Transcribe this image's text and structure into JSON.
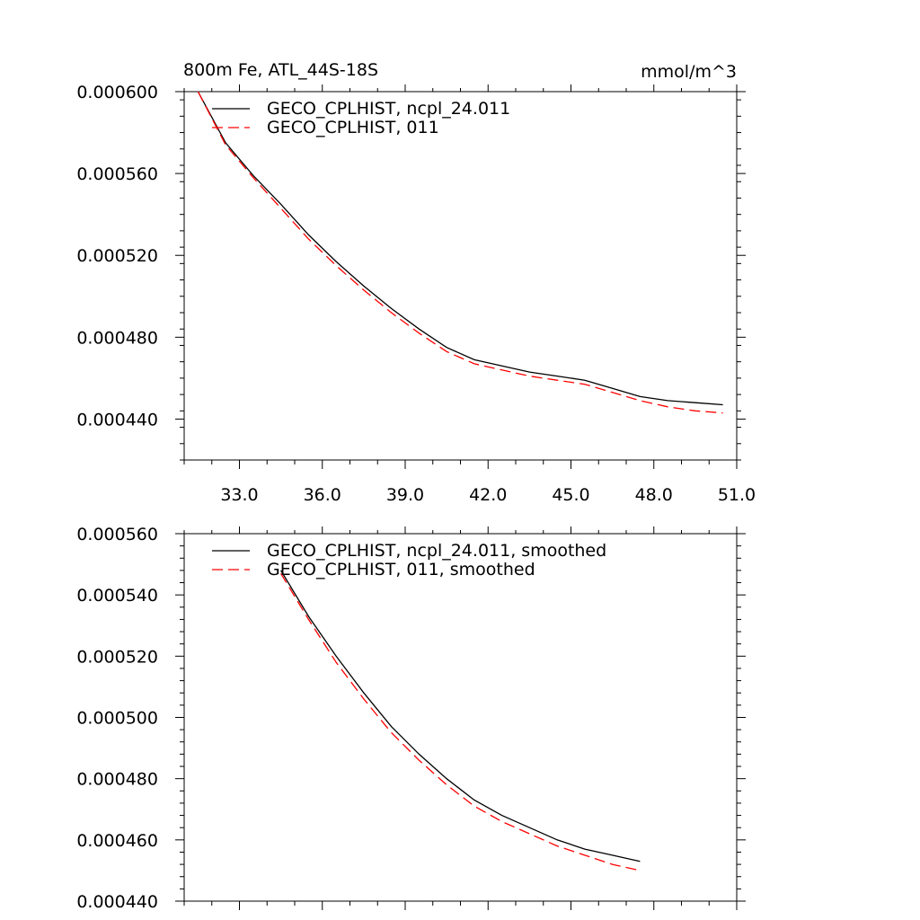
{
  "chart_data": [
    {
      "type": "line",
      "title": "800m Fe, ATL_44S-18S",
      "units": "mmol/m^3",
      "xlim": [
        31.0,
        51.0
      ],
      "ylim": [
        0.00042,
        0.0006
      ],
      "x_ticks": [
        33,
        36,
        39,
        42,
        45,
        48,
        51
      ],
      "x_tick_labels": [
        "33.0",
        "36.0",
        "39.0",
        "42.0",
        "45.0",
        "48.0",
        "51.0"
      ],
      "y_ticks": [
        0.00044,
        0.00048,
        0.00052,
        0.00056,
        0.0006
      ],
      "y_tick_labels": [
        "0.000440",
        "0.000480",
        "0.000520",
        "0.000560",
        "0.000600"
      ],
      "legend_position": "top-left",
      "series": [
        {
          "name": "GECO_CPLHIST, ncpl_24.011",
          "color": "#000000",
          "dash": "solid",
          "x": [
            31.5,
            32.5,
            33.5,
            34.5,
            35.5,
            36.5,
            37.5,
            38.5,
            39.5,
            40.5,
            41.5,
            42.5,
            43.5,
            44.5,
            45.5,
            46.5,
            47.5,
            48.5,
            49.5,
            50.5
          ],
          "y": [
            0.0006,
            0.000575,
            0.000559,
            0.000545,
            0.00053,
            0.000517,
            0.000505,
            0.000494,
            0.000484,
            0.000475,
            0.000469,
            0.000466,
            0.000463,
            0.000461,
            0.000459,
            0.000455,
            0.000451,
            0.000449,
            0.000448,
            0.000447
          ]
        },
        {
          "name": "GECO_CPLHIST, 011",
          "color": "#ff0000",
          "dash": "dashed",
          "x": [
            31.5,
            32.5,
            33.5,
            34.5,
            35.5,
            36.5,
            37.5,
            38.5,
            39.5,
            40.5,
            41.5,
            42.5,
            43.5,
            44.5,
            45.5,
            46.5,
            47.5,
            48.5,
            49.5,
            50.5
          ],
          "y": [
            0.0006,
            0.000574,
            0.000558,
            0.000543,
            0.000528,
            0.000515,
            0.000503,
            0.000492,
            0.000482,
            0.000473,
            0.000467,
            0.000464,
            0.000461,
            0.000459,
            0.000457,
            0.000453,
            0.000449,
            0.000446,
            0.000444,
            0.000443
          ]
        }
      ]
    },
    {
      "type": "line",
      "xlim": [
        31.0,
        51.0
      ],
      "ylim": [
        0.00044,
        0.00056
      ],
      "x_ticks": [
        33,
        36,
        39,
        42,
        45,
        48,
        51
      ],
      "y_ticks": [
        0.00044,
        0.00046,
        0.00048,
        0.0005,
        0.00052,
        0.00054,
        0.00056
      ],
      "y_tick_labels": [
        "0.000440",
        "0.000460",
        "0.000480",
        "0.000500",
        "0.000520",
        "0.000540",
        "0.000560"
      ],
      "legend_position": "top-left",
      "series": [
        {
          "name": "GECO_CPLHIST, ncpl_24.011, smoothed",
          "color": "#000000",
          "dash": "solid",
          "x": [
            34.5,
            35.5,
            36.5,
            37.5,
            38.5,
            39.5,
            40.5,
            41.5,
            42.5,
            43.5,
            44.5,
            45.5,
            46.5,
            47.5
          ],
          "y": [
            0.000548,
            0.000533,
            0.00052,
            0.000508,
            0.000497,
            0.000488,
            0.00048,
            0.000473,
            0.000468,
            0.000464,
            0.00046,
            0.000457,
            0.000455,
            0.000453
          ]
        },
        {
          "name": "GECO_CPLHIST, 011, smoothed",
          "color": "#ff0000",
          "dash": "dashed",
          "x": [
            34.5,
            35.5,
            36.5,
            37.5,
            38.5,
            39.5,
            40.5,
            41.5,
            42.5,
            43.5,
            44.5,
            45.5,
            46.5,
            47.5
          ],
          "y": [
            0.000547,
            0.000532,
            0.000518,
            0.000506,
            0.000495,
            0.000486,
            0.000478,
            0.000471,
            0.000466,
            0.000462,
            0.000458,
            0.000455,
            0.000452,
            0.00045
          ]
        }
      ]
    }
  ]
}
